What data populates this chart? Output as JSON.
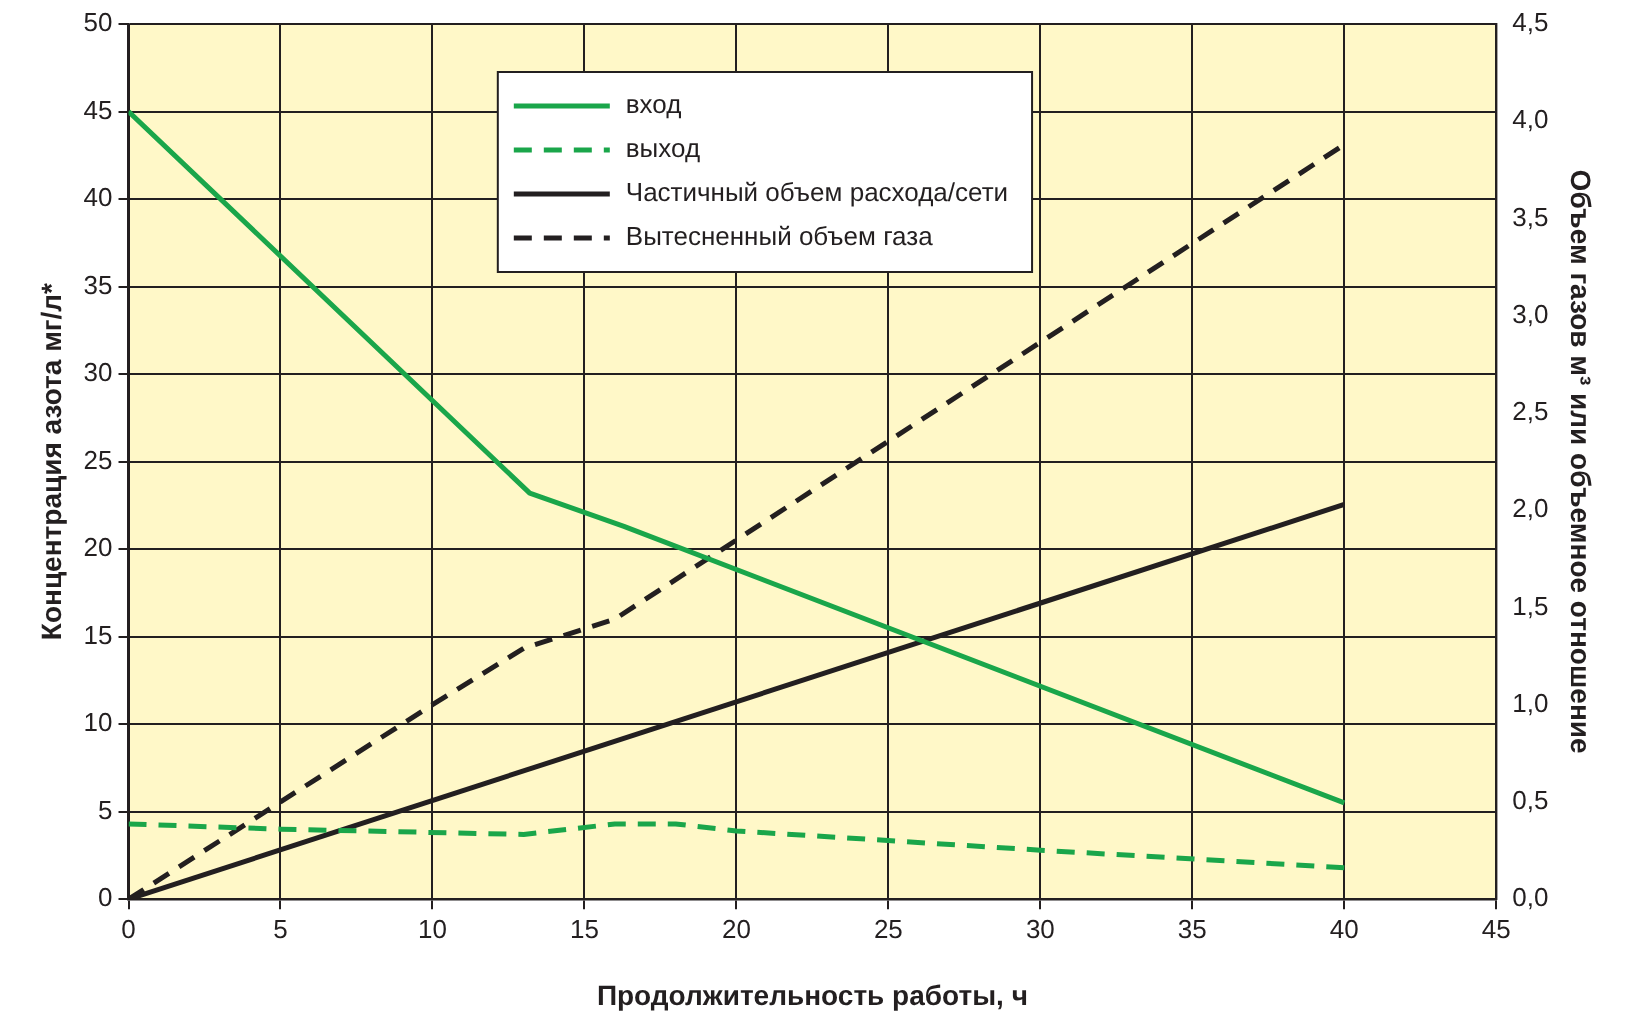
{
  "chart_data": {
    "type": "line",
    "xlabel": "Продолжительность работы, ч",
    "ylabel": "Концентрация азота мг/л*",
    "y2label": "Объем газов м³ или объемное отношение",
    "xlim": [
      0,
      45
    ],
    "xticks": [
      0,
      5,
      10,
      15,
      20,
      25,
      30,
      35,
      40,
      45
    ],
    "ylim": [
      0,
      50
    ],
    "yticks": [
      0,
      5,
      10,
      15,
      20,
      25,
      30,
      35,
      40,
      45,
      50
    ],
    "y2lim": [
      0,
      4.5
    ],
    "y2ticks": [
      {
        "value": 0,
        "label": "0,0"
      },
      {
        "value": 0.5,
        "label": "0,5"
      },
      {
        "value": 1,
        "label": "1,0"
      },
      {
        "value": 1.5,
        "label": "1,5"
      },
      {
        "value": 2,
        "label": "2,0"
      },
      {
        "value": 2.5,
        "label": "2,5"
      },
      {
        "value": 3,
        "label": "3,0"
      },
      {
        "value": 3.5,
        "label": "3,5"
      },
      {
        "value": 4,
        "label": "4,0"
      },
      {
        "value": 4.5,
        "label": "4,5"
      }
    ],
    "grid": true,
    "legend": "top",
    "marker": "none",
    "series": [
      {
        "name": "вход",
        "color": "#1aa64a",
        "line_style": "solid",
        "x": [
          0,
          13.2,
          16.3,
          40
        ],
        "values": [
          45,
          23.2,
          21.3,
          5.5
        ]
      },
      {
        "name": "выход",
        "color": "#1aa64a",
        "line_style": "dashed",
        "x": [
          0,
          5,
          13,
          16,
          18,
          20,
          30,
          40
        ],
        "values": [
          4.3,
          4.0,
          3.7,
          4.3,
          4.3,
          3.9,
          2.8,
          1.8
        ]
      },
      {
        "name": "Частичный объем расхода/сети",
        "color": "#231f20",
        "line_style": "solid",
        "axis": "y2",
        "x": [
          0,
          40
        ],
        "values": [
          0,
          2.03
        ]
      },
      {
        "name": "Вытесненный объем газа",
        "color": "#231f20",
        "line_style": "dashed",
        "axis": "y2",
        "x": [
          0,
          10,
          13,
          16,
          40
        ],
        "values": [
          0,
          1.0,
          1.29,
          1.44,
          3.88
        ]
      }
    ]
  }
}
